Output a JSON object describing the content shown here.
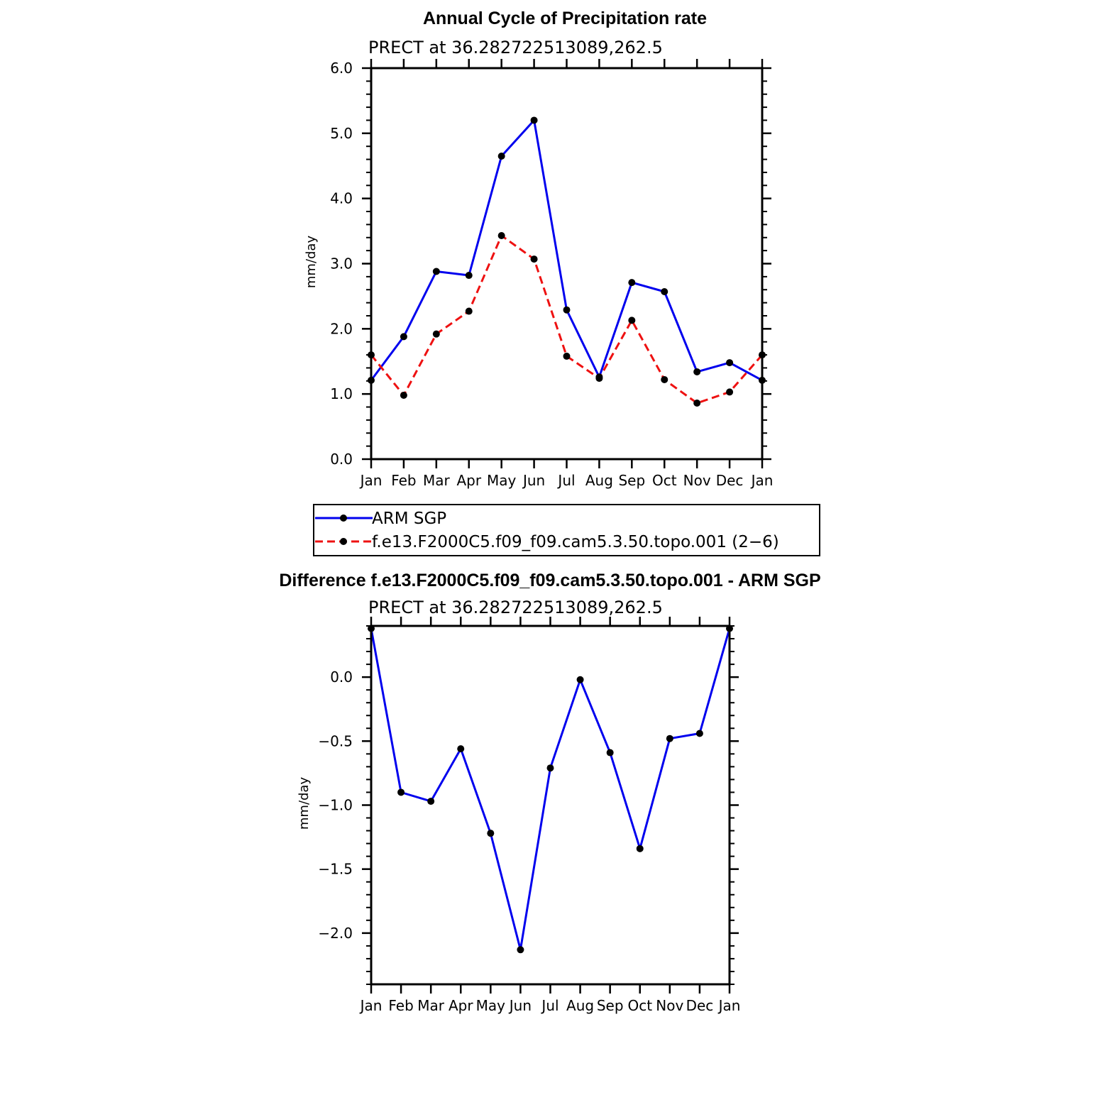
{
  "chart_data": [
    {
      "type": "line",
      "title": "Annual Cycle of Precipitation rate",
      "subtitle": "PRECT at 36.282722513089,262.5",
      "ylabel": "mm/day",
      "xlabel": "",
      "categories": [
        "Jan",
        "Feb",
        "Mar",
        "Apr",
        "May",
        "Jun",
        "Jul",
        "Aug",
        "Sep",
        "Oct",
        "Nov",
        "Dec",
        "Jan"
      ],
      "ylim": [
        0,
        6
      ],
      "yticks": [
        "0.0",
        "1.0",
        "2.0",
        "3.0",
        "4.0",
        "5.0",
        "6.0"
      ],
      "grid": false,
      "legend_position": "bottom",
      "series": [
        {
          "name": "ARM SGP",
          "color": "#0000ee",
          "dash": "solid",
          "marker": "circle",
          "values": [
            1.21,
            1.88,
            2.88,
            2.82,
            4.65,
            5.2,
            2.29,
            1.26,
            2.71,
            2.57,
            1.34,
            1.48,
            1.21
          ]
        },
        {
          "name": "f.e13.F2000C5.f09_f09.cam5.3.50.topo.001 (2−6)",
          "color": "#ee1111",
          "dash": "dashed",
          "marker": "circle",
          "values": [
            1.6,
            0.98,
            1.92,
            2.27,
            3.43,
            3.07,
            1.58,
            1.24,
            2.13,
            1.22,
            0.86,
            1.03,
            1.6
          ]
        }
      ]
    },
    {
      "type": "line",
      "title": "Difference f.e13.F2000C5.f09_f09.cam5.3.50.topo.001 - ARM SGP",
      "subtitle": "PRECT at 36.282722513089,262.5",
      "ylabel": "mm/day",
      "xlabel": "",
      "categories": [
        "Jan",
        "Feb",
        "Mar",
        "Apr",
        "May",
        "Jun",
        "Jul",
        "Aug",
        "Sep",
        "Oct",
        "Nov",
        "Dec",
        "Jan"
      ],
      "ylim": [
        -2.4,
        0.4
      ],
      "yticks": [
        "−2.0",
        "−1.5",
        "−1.0",
        "−0.5",
        "0.0"
      ],
      "grid": false,
      "series": [
        {
          "color": "#0000ee",
          "dash": "solid",
          "marker": "circle",
          "values": [
            0.38,
            -0.9,
            -0.97,
            -0.56,
            -1.22,
            -2.13,
            -0.71,
            -0.02,
            -0.59,
            -1.34,
            -0.48,
            -0.44,
            0.38
          ]
        }
      ]
    }
  ]
}
